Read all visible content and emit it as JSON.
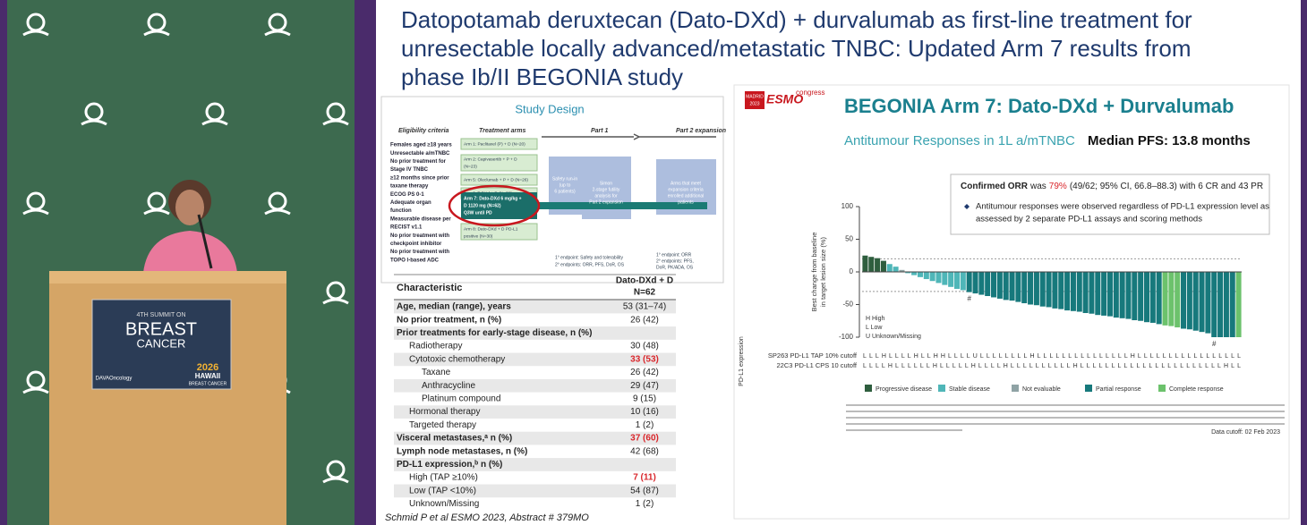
{
  "video": {
    "sign": [
      "4TH SUMMIT ON",
      "BREAST",
      "CANCER"
    ],
    "logo_left": "DAVAOncology",
    "logo_right": [
      "2026",
      "HAWAII",
      "BREAST CANCER"
    ]
  },
  "slide": {
    "title_lines": [
      "Datopotamab deruxtecan (Dato-DXd) + durvalumab as first-line treatment for",
      "unresectable locally advanced/metastatic TNBC: Updated Arm 7 results from",
      "phase Ib/II BEGONIA study"
    ],
    "citation": "Schmid P et al ESMO 2023, Abstract # 379MO",
    "study_design": {
      "title": "Study Design",
      "headers": [
        "Eligibility criteria",
        "Treatment arms",
        "Part 1",
        "Part 2 expansion"
      ],
      "eligibility": [
        "Females aged ≥18 years",
        "Unresectable a/mTNBC",
        "No prior treatment for",
        "Stage IV TNBC",
        "≥12 months since prior",
        "taxane therapy",
        "ECOG PS 0-1",
        "Adequate organ",
        "function",
        "Measurable disease per",
        "RECIST v1.1",
        "No prior treatment with",
        "checkpoint inhibitor",
        "No prior treatment with",
        "TOPO I-based ADC"
      ],
      "arms": [
        "Arm 1: Paclitaxel (P) + D (N=20)",
        "Arm 2: Capivasertib + P + D",
        "(N=23)",
        "Arm 5: Oleclumab + P + D (N=26)",
        "Arm 6: T-DXd + D (N=58)",
        "Arm 8: Dato-DXd + D PD-L1",
        "positive (N=30)"
      ],
      "arm7": [
        "Arm 7: Dato-DXd 6 mg/kg +",
        "D 1120 mg (N=62)",
        "Q3W until PD"
      ],
      "boxes": [
        [
          "Safety run-in",
          "(up to",
          "6 patients)"
        ],
        [
          "Simon",
          "2-stage futility",
          "analysis for",
          "Part 2 expansion"
        ],
        [
          "Arms that meet",
          "expansion criteria",
          "enrolled additional",
          "patients"
        ]
      ],
      "endpoints1": [
        "1° endpoint: Safety and tolerability",
        "2° endpoints: ORR, PFS, DoR, OS"
      ],
      "endpoints2": [
        "1° endpoint: ORR",
        "2° endpoints: PFS,",
        "DoR, PK/ADA, OS"
      ]
    },
    "table": {
      "header": [
        "Characteristic",
        "Dato-DXd + D",
        "N=62"
      ],
      "rows": [
        {
          "label": "Age, median (range), years",
          "value": "53 (31–74)",
          "bold": true,
          "indent": 0
        },
        {
          "label": "No prior treatment, n (%)",
          "value": "26 (42)",
          "bold": true,
          "indent": 0
        },
        {
          "label": "Prior treatments for early-stage disease, n (%)",
          "bold": true,
          "indent": 0
        },
        {
          "label": "Radiotherapy",
          "value": "30 (48)",
          "indent": 1
        },
        {
          "label": "Cytotoxic chemotherapy",
          "value": "33 (53)",
          "indent": 1,
          "highlight": true
        },
        {
          "label": "Taxane",
          "value": "26 (42)",
          "indent": 2
        },
        {
          "label": "Anthracycline",
          "value": "29 (47)",
          "indent": 2
        },
        {
          "label": "Platinum compound",
          "value": "9 (15)",
          "indent": 2
        },
        {
          "label": "Hormonal therapy",
          "value": "10 (16)",
          "indent": 1
        },
        {
          "label": "Targeted therapy",
          "value": "1 (2)",
          "indent": 1
        },
        {
          "label": "Visceral metastases,ᵃ n (%)",
          "value": "37 (60)",
          "bold": true,
          "indent": 0,
          "highlight": true
        },
        {
          "label": "Lymph node metastases, n (%)",
          "value": "42 (68)",
          "bold": true,
          "indent": 0
        },
        {
          "label": "PD-L1 expression,ᵇ n (%)",
          "bold": true,
          "indent": 0
        },
        {
          "label": "High (TAP ≥10%)",
          "value": "7 (11)",
          "indent": 1,
          "highlight": true
        },
        {
          "label": "Low (TAP <10%)",
          "value": "54 (87)",
          "indent": 1
        },
        {
          "label": "Unknown/Missing",
          "value": "1 (2)",
          "indent": 1
        }
      ]
    },
    "inset": {
      "logo": [
        "MADRID",
        "2023",
        "ESMO",
        "congress"
      ],
      "title": "BEGONIA Arm 7: Dato-DXd + Durvalumab",
      "subtitle": "Antitumour Responses in 1L a/mTNBC",
      "pfs": "Median PFS: 13.8 months",
      "orr_parts": [
        {
          "text": "Confirmed ORR",
          "bold": true
        },
        {
          "text": "was"
        },
        {
          "text": "79%",
          "color": "#d9262b"
        },
        {
          "text": "(49/62; 95% CI, 66.8–88.3) with 6 CR and 43 PR"
        }
      ],
      "bullet": [
        "Antitumour responses were observed regardless of PD-L1 expression level as",
        "assessed by 2 separate PD-L1 assays and scoring methods"
      ],
      "cutoff": "Data cutoff: 02 Feb 2023"
    }
  },
  "chart_data": {
    "type": "bar",
    "y_label": [
      "Best change from baseline",
      "in target lesion size (%)"
    ],
    "ylim": [
      -100,
      100
    ],
    "yticks": [
      100,
      50,
      0,
      -50,
      -100
    ],
    "hlines": [
      20,
      -30
    ],
    "values": [
      25,
      23,
      21,
      17,
      12,
      8,
      3,
      -2,
      -5,
      -8,
      -11,
      -14,
      -17,
      -20,
      -23,
      -26,
      -28,
      -31,
      -33,
      -35,
      -37,
      -39,
      -41,
      -43,
      -44,
      -46,
      -48,
      -50,
      -51,
      -53,
      -54,
      -56,
      -57,
      -59,
      -60,
      -61,
      -63,
      -64,
      -66,
      -67,
      -68,
      -70,
      -71,
      -72,
      -74,
      -75,
      -77,
      -78,
      -80,
      -82,
      -83,
      -85,
      -87,
      -88,
      -90,
      -92,
      -94,
      -100,
      -100,
      -100,
      -100,
      -100
    ],
    "colors": [
      "#2e5e3e",
      "#2e5e3e",
      "#2e5e3e",
      "#2e5e3e",
      "#4fb6b8",
      "#4fb6b8",
      "#8fa3a5",
      "#4fb6b8",
      "#4fb6b8",
      "#4fb6b8",
      "#4fb6b8",
      "#4fb6b8",
      "#4fb6b8",
      "#4fb6b8",
      "#4fb6b8",
      "#4fb6b8",
      "#4fb6b8",
      "#17797c",
      "#17797c",
      "#17797c",
      "#17797c",
      "#17797c",
      "#17797c",
      "#17797c",
      "#17797c",
      "#17797c",
      "#17797c",
      "#17797c",
      "#17797c",
      "#17797c",
      "#17797c",
      "#17797c",
      "#17797c",
      "#17797c",
      "#17797c",
      "#17797c",
      "#17797c",
      "#17797c",
      "#17797c",
      "#17797c",
      "#17797c",
      "#17797c",
      "#17797c",
      "#17797c",
      "#17797c",
      "#17797c",
      "#17797c",
      "#17797c",
      "#17797c",
      "#6cc26c",
      "#6cc26c",
      "#6cc26c",
      "#17797c",
      "#17797c",
      "#17797c",
      "#17797c",
      "#17797c",
      "#17797c",
      "#17797c",
      "#17797c",
      "#17797c",
      "#6cc26c",
      "#6cc26c"
    ],
    "legend": [
      {
        "name": "Progressive disease",
        "color": "#2e5e3e"
      },
      {
        "name": "Stable disease",
        "color": "#4fb6b8"
      },
      {
        "name": "Not evaluable",
        "color": "#8fa3a5"
      },
      {
        "name": "Partial response",
        "color": "#17797c"
      },
      {
        "name": "Complete response",
        "color": "#6cc26c"
      }
    ],
    "key": [
      "H  High",
      "L  Low",
      "U  Unknown/Missing"
    ],
    "annotations": [
      {
        "label": "#",
        "category_index": 17
      },
      {
        "label": "#",
        "category_index": 57
      }
    ],
    "pdl1_title": "PD-L1 expression",
    "pdl1_rows": [
      {
        "label": "SP263 PD-L1 TAP 10% cutoff",
        "codes": "LLLHLLLLHLLHHLLLLULLLLLLLLHLLLLLLLLLLLLLLLHLLLLLLLLLLLLLLLLL"
      },
      {
        "label": "22C3 PD-L1 CPS 10 cutoff",
        "codes": "LLLLHLLLLLLHLLLLLHLLLLHLLLLLLLLLLHLLLLLLLLLLLLLLLLLLLLLLLHLL"
      }
    ]
  }
}
